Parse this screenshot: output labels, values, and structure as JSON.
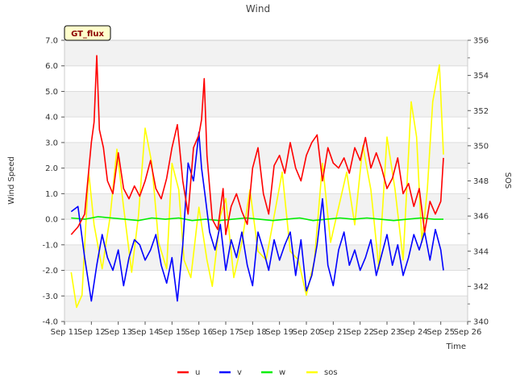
{
  "chart_data": {
    "type": "line",
    "title": "Wind",
    "badge": "GT_flux",
    "xlabel": "Time",
    "ylabel_left": "Wind Speed",
    "ylabel_right": "SOS",
    "ylim_left": [
      -4.0,
      7.0
    ],
    "ylim_right": [
      340,
      356
    ],
    "xlim": [
      11,
      26
    ],
    "x_ticks": [
      "Sep 11",
      "Sep 12",
      "Sep 13",
      "Sep 14",
      "Sep 15",
      "Sep 16",
      "Sep 17",
      "Sep 18",
      "Sep 19",
      "Sep 20",
      "Sep 21",
      "Sep 22",
      "Sep 23",
      "Sep 24",
      "Sep 25",
      "Sep 26"
    ],
    "y_ticks_left": [
      "-4.0",
      "-3.0",
      "-2.0",
      "-1.0",
      "0.0",
      "1.0",
      "2.0",
      "3.0",
      "4.0",
      "5.0",
      "6.0",
      "7.0"
    ],
    "y_ticks_right": [
      "340",
      "342",
      "344",
      "346",
      "348",
      "350",
      "352",
      "354",
      "356"
    ],
    "grid": true,
    "legend_position": "bottom-center",
    "series": [
      {
        "name": "u",
        "axis": "left",
        "color": "#ff0000",
        "x": [
          11.25,
          11.5,
          11.75,
          12.0,
          12.1,
          12.2,
          12.3,
          12.45,
          12.6,
          12.8,
          13.0,
          13.2,
          13.4,
          13.6,
          13.8,
          14.0,
          14.2,
          14.4,
          14.6,
          14.8,
          15.0,
          15.2,
          15.4,
          15.6,
          15.8,
          16.0,
          16.1,
          16.2,
          16.3,
          16.5,
          16.7,
          16.9,
          17.0,
          17.2,
          17.4,
          17.6,
          17.8,
          18.0,
          18.2,
          18.4,
          18.6,
          18.8,
          19.0,
          19.2,
          19.4,
          19.6,
          19.8,
          20.0,
          20.2,
          20.4,
          20.6,
          20.8,
          21.0,
          21.2,
          21.4,
          21.6,
          21.8,
          22.0,
          22.2,
          22.4,
          22.6,
          22.8,
          23.0,
          23.2,
          23.4,
          23.6,
          23.8,
          24.0,
          24.2,
          24.4,
          24.6,
          24.8,
          25.0,
          25.1
        ],
        "y": [
          -0.6,
          -0.3,
          0.2,
          3.0,
          3.8,
          6.4,
          3.5,
          2.8,
          1.5,
          1.0,
          2.6,
          1.2,
          0.8,
          1.3,
          0.9,
          1.5,
          2.3,
          1.2,
          0.8,
          1.6,
          2.8,
          3.7,
          1.5,
          0.2,
          2.8,
          3.3,
          3.9,
          5.5,
          2.5,
          0.0,
          -0.4,
          1.2,
          -0.6,
          0.5,
          1.0,
          0.3,
          -0.2,
          2.0,
          2.8,
          1.0,
          0.2,
          2.1,
          2.5,
          1.8,
          3.0,
          2.0,
          1.5,
          2.5,
          3.0,
          3.3,
          1.5,
          2.8,
          2.2,
          2.0,
          2.4,
          1.8,
          2.8,
          2.3,
          3.2,
          2.0,
          2.6,
          2.0,
          1.2,
          1.6,
          2.4,
          1.0,
          1.4,
          0.5,
          1.2,
          -0.5,
          0.7,
          0.2,
          0.7,
          2.4
        ]
      },
      {
        "name": "v",
        "axis": "left",
        "color": "#0000ff",
        "x": [
          11.25,
          11.5,
          11.75,
          12.0,
          12.2,
          12.4,
          12.6,
          12.8,
          13.0,
          13.2,
          13.4,
          13.6,
          13.8,
          14.0,
          14.2,
          14.4,
          14.6,
          14.8,
          15.0,
          15.2,
          15.4,
          15.6,
          15.8,
          16.0,
          16.1,
          16.2,
          16.4,
          16.6,
          16.8,
          17.0,
          17.2,
          17.4,
          17.6,
          17.8,
          18.0,
          18.2,
          18.4,
          18.6,
          18.8,
          19.0,
          19.2,
          19.4,
          19.6,
          19.8,
          20.0,
          20.2,
          20.4,
          20.6,
          20.8,
          21.0,
          21.2,
          21.4,
          21.6,
          21.8,
          22.0,
          22.2,
          22.4,
          22.6,
          22.8,
          23.0,
          23.2,
          23.4,
          23.6,
          23.8,
          24.0,
          24.2,
          24.4,
          24.6,
          24.8,
          25.0,
          25.1
        ],
        "y": [
          0.3,
          0.5,
          -1.5,
          -3.2,
          -1.8,
          -0.6,
          -1.5,
          -2.0,
          -1.2,
          -2.6,
          -1.5,
          -0.8,
          -1.0,
          -1.6,
          -1.2,
          -0.6,
          -1.8,
          -2.5,
          -1.5,
          -3.2,
          -1.0,
          2.2,
          1.5,
          3.4,
          2.0,
          1.2,
          -0.5,
          -1.2,
          -0.2,
          -2.0,
          -0.8,
          -1.5,
          -0.5,
          -1.8,
          -2.6,
          -0.5,
          -1.2,
          -2.0,
          -0.8,
          -1.6,
          -1.0,
          -0.5,
          -2.2,
          -0.8,
          -2.8,
          -2.2,
          -1.0,
          0.8,
          -1.8,
          -2.6,
          -1.2,
          -0.5,
          -1.8,
          -1.2,
          -2.0,
          -1.5,
          -0.8,
          -2.2,
          -1.4,
          -0.6,
          -1.8,
          -1.0,
          -2.2,
          -1.5,
          -0.6,
          -1.2,
          -0.5,
          -1.6,
          -0.4,
          -1.2,
          -2.0
        ]
      },
      {
        "name": "w",
        "axis": "left",
        "color": "#00ee00",
        "x": [
          11.25,
          11.75,
          12.25,
          12.75,
          13.25,
          13.75,
          14.25,
          14.75,
          15.25,
          15.75,
          16.25,
          16.75,
          17.25,
          17.75,
          18.25,
          18.75,
          19.25,
          19.75,
          20.25,
          20.75,
          21.25,
          21.75,
          22.25,
          22.75,
          23.25,
          23.75,
          24.25,
          24.75,
          25.1
        ],
        "y": [
          0.05,
          0.0,
          0.1,
          0.05,
          0.0,
          -0.05,
          0.05,
          0.0,
          0.05,
          -0.05,
          0.0,
          -0.05,
          0.0,
          0.05,
          0.0,
          -0.05,
          0.0,
          0.05,
          -0.05,
          0.0,
          0.05,
          0.0,
          0.05,
          0.0,
          -0.05,
          0.0,
          0.05,
          0.0,
          0.0
        ]
      },
      {
        "name": "sos",
        "axis": "right",
        "color": "#ffff00",
        "x": [
          11.25,
          11.45,
          11.65,
          11.9,
          12.1,
          12.4,
          12.7,
          12.95,
          13.2,
          13.5,
          13.75,
          14.0,
          14.25,
          14.5,
          14.8,
          15.0,
          15.25,
          15.45,
          15.7,
          16.0,
          16.3,
          16.5,
          16.8,
          17.0,
          17.3,
          17.6,
          17.9,
          18.2,
          18.5,
          18.8,
          19.1,
          19.4,
          19.7,
          20.0,
          20.3,
          20.6,
          20.9,
          21.2,
          21.5,
          21.8,
          22.1,
          22.4,
          22.7,
          23.0,
          23.3,
          23.6,
          23.9,
          24.1,
          24.3,
          24.5,
          24.7,
          24.95,
          25.1
        ],
        "y": [
          342.8,
          340.8,
          341.5,
          348.5,
          345.5,
          343.0,
          346.0,
          349.8,
          346.5,
          342.8,
          346.0,
          351.0,
          349.0,
          344.5,
          343.0,
          349.0,
          347.5,
          343.5,
          342.5,
          346.5,
          343.5,
          342.0,
          346.0,
          347.0,
          342.5,
          344.5,
          347.5,
          344.0,
          343.5,
          346.0,
          348.5,
          344.0,
          343.5,
          341.5,
          343.5,
          349.0,
          344.5,
          346.5,
          348.5,
          345.5,
          350.0,
          347.5,
          343.0,
          350.5,
          347.5,
          343.5,
          352.5,
          350.5,
          344.5,
          347.5,
          352.5,
          354.6,
          349.5
        ]
      }
    ]
  }
}
